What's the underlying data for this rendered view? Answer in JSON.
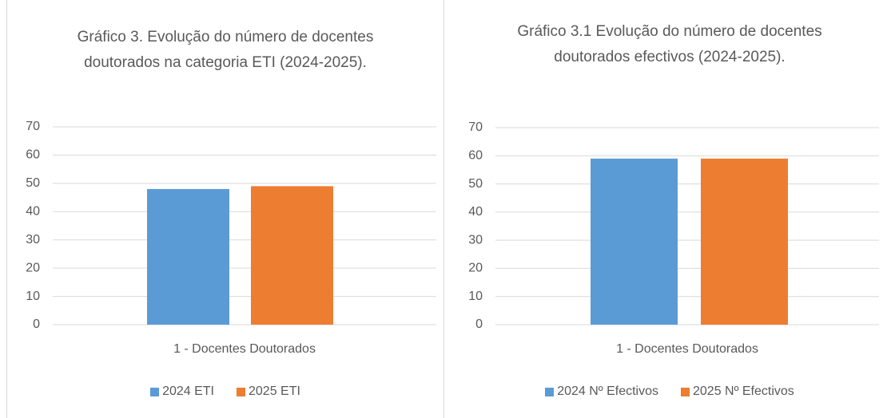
{
  "chart_data": [
    {
      "type": "bar",
      "title": "Gráfico 3. Evolução do número de docentes doutorados na categoria ETI (2024-2025).",
      "categories": [
        "1 - Docentes Doutorados"
      ],
      "series": [
        {
          "name": "2024 ETI",
          "color": "#5b9bd5",
          "values": [
            48
          ]
        },
        {
          "name": "2025 ETI",
          "color": "#ed7d31",
          "values": [
            49
          ]
        }
      ],
      "ylim": [
        0,
        70
      ],
      "yticks": [
        0,
        10,
        20,
        30,
        40,
        50,
        60,
        70
      ],
      "grid": true,
      "legend": "bottom"
    },
    {
      "type": "bar",
      "title": "Gráfico 3.1 Evolução do número de docentes doutorados efectivos (2024-2025).",
      "categories": [
        "1 - Docentes Doutorados"
      ],
      "series": [
        {
          "name": "2024 Nº Efectivos",
          "color": "#5b9bd5",
          "values": [
            59
          ]
        },
        {
          "name": "2025 Nº Efectivos",
          "color": "#ed7d31",
          "values": [
            59
          ]
        }
      ],
      "ylim": [
        0,
        70
      ],
      "yticks": [
        0,
        10,
        20,
        30,
        40,
        50,
        60,
        70
      ],
      "grid": true,
      "legend": "bottom"
    }
  ]
}
